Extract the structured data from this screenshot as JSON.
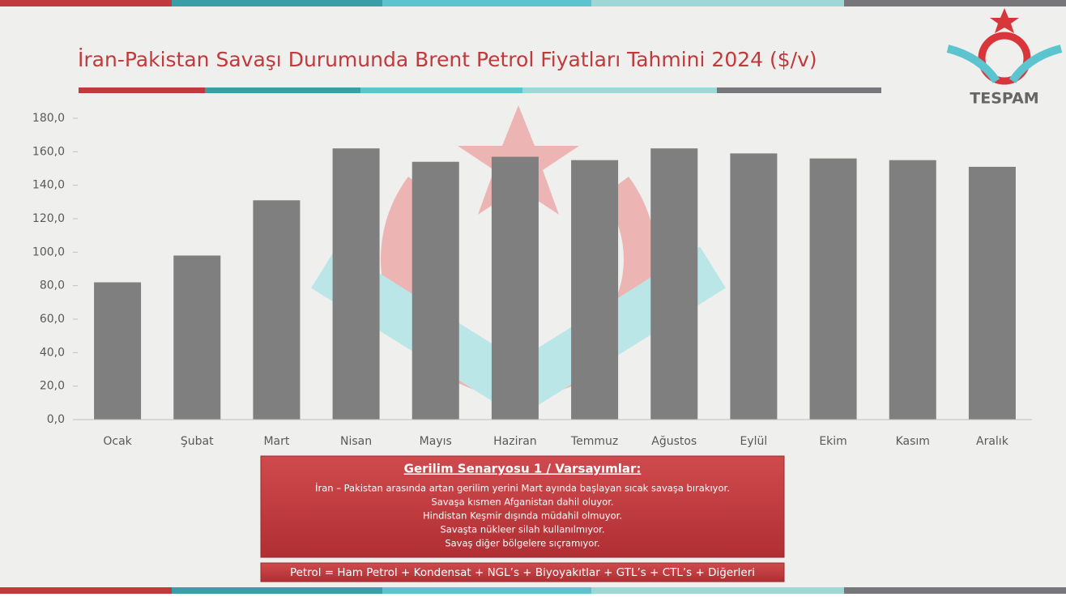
{
  "chart_data": {
    "type": "bar",
    "title": "İran-Pakistan Savaşı Durumunda Brent Petrol Fiyatları Tahmini 2024 ($/v)",
    "categories": [
      "Ocak",
      "Şubat",
      "Mart",
      "Nisan",
      "Mayıs",
      "Haziran",
      "Temmuz",
      "Ağustos",
      "Eylül",
      "Ekim",
      "Kasım",
      "Aralık"
    ],
    "values": [
      82,
      98,
      131,
      162,
      154,
      157,
      155,
      162,
      159,
      156,
      155,
      151
    ],
    "color": "#7f7f7f",
    "ylim": [
      0,
      180
    ],
    "yticks": [
      {
        "value": 0,
        "label": "0,0"
      },
      {
        "value": 20,
        "label": "20,0"
      },
      {
        "value": 40,
        "label": "40,0"
      },
      {
        "value": 60,
        "label": "60,0"
      },
      {
        "value": 80,
        "label": "80,0"
      },
      {
        "value": 100,
        "label": "100,0"
      },
      {
        "value": 120,
        "label": "120,0"
      },
      {
        "value": 140,
        "label": "140,0"
      },
      {
        "value": 160,
        "label": "160,0"
      },
      {
        "value": 180,
        "label": "180,0"
      }
    ],
    "grid": false
  },
  "logo": "TESPAM",
  "scenario": {
    "title": "Gerilim Senaryosu  1 / Varsayımlar:",
    "lines": [
      "İran – Pakistan arasında artan gerilim yerini Mart ayında başlayan sıcak savaşa bırakıyor.",
      "Savaşa kısmen Afganistan dahil oluyor.",
      "Hindistan Keşmir dışında müdahil olmuyor.",
      "Savaşta nükleer silah kullanılmıyor.",
      "Savaş diğer bölgelere sıçramıyor."
    ]
  },
  "footer": "Petrol = Ham Petrol + Kondensat + NGL’s + Biyoyakıtlar + GTL’s + CTL’s + Diğerleri"
}
